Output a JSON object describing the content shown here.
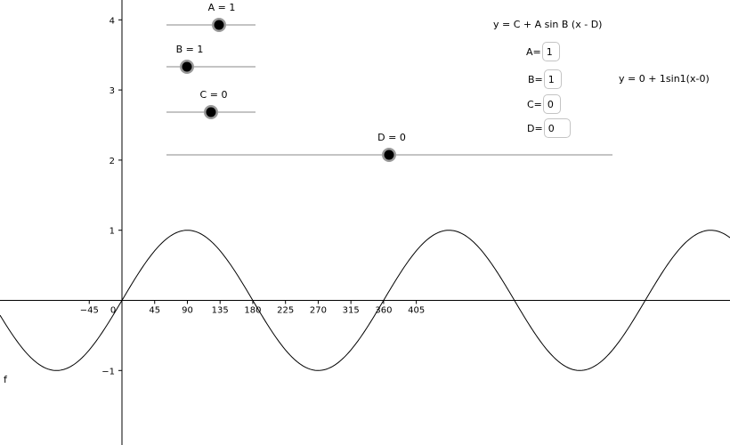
{
  "graph": {
    "x_ticks": [
      {
        "value": -45,
        "label": "−45"
      },
      {
        "value": 0,
        "label": "0"
      },
      {
        "value": 45,
        "label": "45"
      },
      {
        "value": 90,
        "label": "90"
      },
      {
        "value": 135,
        "label": "135"
      },
      {
        "value": 180,
        "label": "180"
      },
      {
        "value": 225,
        "label": "225"
      },
      {
        "value": 270,
        "label": "270"
      },
      {
        "value": 315,
        "label": "315"
      },
      {
        "value": 360,
        "label": "360"
      },
      {
        "value": 405,
        "label": "405"
      }
    ],
    "y_ticks": [
      {
        "value": 4,
        "label": "4"
      },
      {
        "value": 3,
        "label": "3"
      },
      {
        "value": 2,
        "label": "2"
      },
      {
        "value": 1,
        "label": "1"
      },
      {
        "value": -1,
        "label": "−1"
      }
    ],
    "curve_label": "f",
    "curve_color": "#000000"
  },
  "sliders": {
    "A": {
      "label": "A = 1",
      "value": 1
    },
    "B": {
      "label": "B = 1",
      "value": 1
    },
    "C": {
      "label": "C = 0",
      "value": 0
    },
    "D": {
      "label": "D = 0",
      "value": 0
    }
  },
  "formula_general": "y = C + A sin B (x - D)",
  "formula_current": "y = 0 + 1sin1(x-0)",
  "inputs": [
    {
      "label": "A=",
      "value": "1"
    },
    {
      "label": "B=",
      "value": "1"
    },
    {
      "label": "C=",
      "value": "0"
    },
    {
      "label": "D=",
      "value": "0"
    }
  ],
  "colors": {
    "slider_knob": "#000000",
    "slider_halo": "#999999",
    "slider_line": "#888888",
    "axis": "#000000"
  }
}
